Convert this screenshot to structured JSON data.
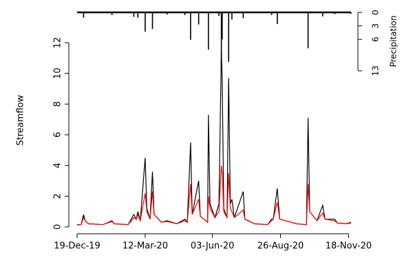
{
  "chart_data": {
    "type": "line",
    "y_label": "Streamflow",
    "y2_label": "Precipitation",
    "x": [
      "2019-12-19",
      "2019-12-24",
      "2019-12-27",
      "2019-12-29",
      "2020-01-02",
      "2020-01-20",
      "2020-01-31",
      "2020-02-03",
      "2020-02-20",
      "2020-02-27",
      "2020-03-01",
      "2020-03-03",
      "2020-03-06",
      "2020-03-12",
      "2020-03-14",
      "2020-03-18",
      "2020-03-21",
      "2020-03-23",
      "2020-04-01",
      "2020-04-08",
      "2020-04-20",
      "2020-04-30",
      "2020-05-03",
      "2020-05-07",
      "2020-05-09",
      "2020-05-17",
      "2020-05-19",
      "2020-05-28",
      "2020-05-29",
      "2020-05-31",
      "2020-06-06",
      "2020-06-11",
      "2020-06-14",
      "2020-06-15",
      "2020-06-17",
      "2020-06-21",
      "2020-06-23",
      "2020-06-25",
      "2020-06-27",
      "2020-06-30",
      "2020-07-11",
      "2020-07-13",
      "2020-07-25",
      "2020-08-10",
      "2020-08-15",
      "2020-08-17",
      "2020-08-22",
      "2020-08-25",
      "2020-09-15",
      "2020-09-27",
      "2020-09-29",
      "2020-10-01",
      "2020-10-10",
      "2020-10-17",
      "2020-10-20",
      "2020-11-01",
      "2020-11-04",
      "2020-11-15",
      "2020-11-21"
    ],
    "series": [
      {
        "color": "#000000",
        "values": [
          0.15,
          0.15,
          0.8,
          0.4,
          0.2,
          0.15,
          0.4,
          0.2,
          0.15,
          0.8,
          0.5,
          1.0,
          0.4,
          4.5,
          1.2,
          0.5,
          3.6,
          0.8,
          0.3,
          0.4,
          0.2,
          0.5,
          0.3,
          5.5,
          0.8,
          3.0,
          0.7,
          0.3,
          7.3,
          1.5,
          0.6,
          1.5,
          11.5,
          9.6,
          1.2,
          0.6,
          9.7,
          1.5,
          1.8,
          0.6,
          2.3,
          0.5,
          0.2,
          0.15,
          0.5,
          0.5,
          2.5,
          0.5,
          0.2,
          0.15,
          7.1,
          1.0,
          0.4,
          1.4,
          0.5,
          0.5,
          0.25,
          0.2,
          0.3
        ]
      },
      {
        "color": "#ff0000",
        "values": [
          0.12,
          0.15,
          0.6,
          0.4,
          0.2,
          0.15,
          0.35,
          0.2,
          0.15,
          0.6,
          0.5,
          0.8,
          0.4,
          2.2,
          1.0,
          0.5,
          2.3,
          0.8,
          0.3,
          0.35,
          0.2,
          0.4,
          0.3,
          2.8,
          0.8,
          1.8,
          0.7,
          0.3,
          2.0,
          1.2,
          0.6,
          1.0,
          4.0,
          3.5,
          1.0,
          0.6,
          3.5,
          1.2,
          1.0,
          0.6,
          1.1,
          0.5,
          0.2,
          0.15,
          0.4,
          0.5,
          1.6,
          0.5,
          0.2,
          0.15,
          2.8,
          1.0,
          0.4,
          0.9,
          0.5,
          0.4,
          0.25,
          0.2,
          0.25
        ]
      },
      {
        "color": "#000000",
        "axis": "y2",
        "type": "bar",
        "values": [
          0,
          0,
          1.2,
          0,
          0,
          0,
          0.6,
          0,
          0,
          1,
          0,
          1.2,
          0,
          4.3,
          0,
          0,
          3.7,
          0,
          0,
          0.5,
          0,
          0.6,
          0,
          6.1,
          0,
          2.7,
          0,
          0,
          8.3,
          0,
          0,
          0.8,
          12.5,
          6,
          0,
          0,
          11,
          0,
          1.6,
          0,
          1.3,
          0,
          0,
          0,
          0.6,
          0,
          2.6,
          0,
          0,
          0,
          8,
          0,
          0,
          0.9,
          0,
          0.4,
          0,
          0,
          0.3
        ]
      }
    ],
    "xlim": [
      "2019-12-19",
      "2020-11-21"
    ],
    "xticks": [
      {
        "value": "2019-12-19",
        "label": "19-Dec-19"
      },
      {
        "value": "2020-03-12",
        "label": "12-Mar-20"
      },
      {
        "value": "2020-06-03",
        "label": "03-Jun-20"
      },
      {
        "value": "2020-08-26",
        "label": "26-Aug-20"
      },
      {
        "value": "2020-11-18",
        "label": "18-Nov-20"
      }
    ],
    "ylim": [
      0,
      14
    ],
    "yticks": [
      0,
      2,
      4,
      6,
      8,
      10,
      12
    ],
    "y2lim": [
      0,
      13
    ],
    "y2ticks": [
      0,
      3,
      6,
      13
    ],
    "y2_reversed": true
  }
}
